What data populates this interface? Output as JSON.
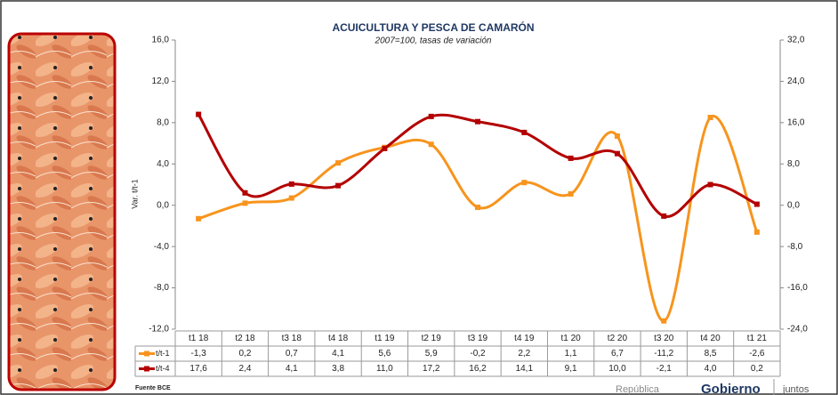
{
  "chart_data": {
    "type": "line",
    "title": "ACUICULTURA Y PESCA DE CAMARÓN",
    "subtitle": "2007=100, tasas de variación",
    "y_label": "Var. t/t-1",
    "categories": [
      "t1 18",
      "t2 18",
      "t3 18",
      "t4 18",
      "t1 19",
      "t2 19",
      "t3 19",
      "t4 19",
      "t1 20",
      "t2 20",
      "t3 20",
      "t4 20",
      "t1 21"
    ],
    "series": [
      {
        "name": "t/t-1",
        "color": "#f7941d",
        "axis": "y",
        "values": [
          -1.3,
          0.2,
          0.7,
          4.1,
          5.6,
          5.9,
          -0.2,
          2.2,
          1.1,
          6.7,
          -11.2,
          8.5,
          -2.6
        ],
        "value_labels": [
          "-1,3",
          "0,2",
          "0,7",
          "4,1",
          "5,6",
          "5,9",
          "-0,2",
          "2,2",
          "1,1",
          "6,7",
          "-11,2",
          "8,5",
          "-2,6"
        ]
      },
      {
        "name": "t/t-4",
        "color": "#b30000",
        "axis": "y2",
        "values": [
          17.6,
          2.4,
          4.1,
          3.8,
          11.0,
          17.2,
          16.2,
          14.1,
          9.1,
          10.0,
          -2.1,
          4.0,
          0.2
        ],
        "value_labels": [
          "17,6",
          "2,4",
          "4,1",
          "3,8",
          "11,0",
          "17,2",
          "16,2",
          "14,1",
          "9,1",
          "10,0",
          "-2,1",
          "4,0",
          "0,2"
        ]
      }
    ],
    "ylim": [
      -12,
      16
    ],
    "yticks": [
      {
        "value": -12,
        "label": "-12,0"
      },
      {
        "value": -8,
        "label": "-8,0"
      },
      {
        "value": -4,
        "label": "-4,0"
      },
      {
        "value": 0,
        "label": "0,0"
      },
      {
        "value": 4,
        "label": "4,0"
      },
      {
        "value": 8,
        "label": "8,0"
      },
      {
        "value": 12,
        "label": "12,0"
      },
      {
        "value": 16,
        "label": "16,0"
      }
    ],
    "y2lim": [
      -24,
      32
    ],
    "y2ticks": [
      {
        "value": -24,
        "label": "-24,0"
      },
      {
        "value": -16,
        "label": "-16,0"
      },
      {
        "value": -8,
        "label": "-8,0"
      },
      {
        "value": 0,
        "label": "0,0"
      },
      {
        "value": 8,
        "label": "8,0"
      },
      {
        "value": 16,
        "label": "16,0"
      },
      {
        "value": 24,
        "label": "24,0"
      },
      {
        "value": 32,
        "label": "32,0"
      }
    ],
    "smooth": true,
    "source": "Fuente BCE",
    "logo_texts": [
      "República",
      "Gobierno",
      "juntos"
    ]
  }
}
